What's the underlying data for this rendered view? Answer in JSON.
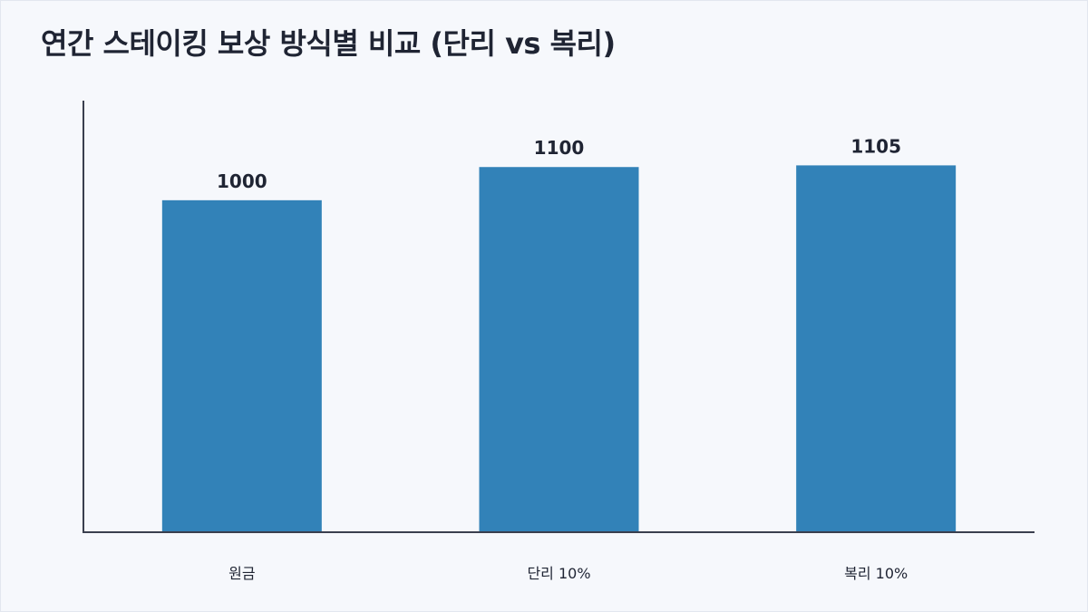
{
  "chart_data": {
    "type": "bar",
    "title": "연간 스테이킹 보상 방식별 비교 (단리 vs 복리)",
    "categories": [
      "원금",
      "단리 10%",
      "복리 10%"
    ],
    "values": [
      1000,
      1100,
      1105
    ],
    "data_labels": [
      "1000",
      "1100",
      "1105"
    ],
    "xlabel": "",
    "ylabel": "",
    "ylim": [
      0,
      1300
    ],
    "grid": false,
    "legend": "none",
    "bar_color": "#3282b8"
  }
}
